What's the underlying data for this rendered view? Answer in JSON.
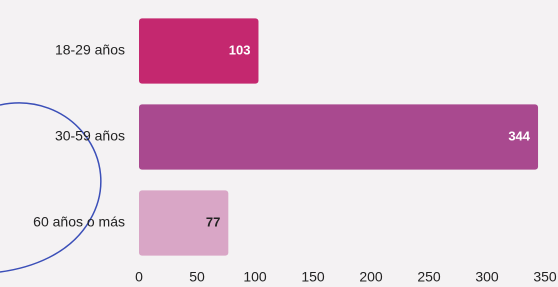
{
  "chart_data": {
    "type": "hbar",
    "categories": [
      "18-29 años",
      "30-59 años",
      "60 años o más"
    ],
    "values": [
      103,
      344,
      77
    ],
    "colors": [
      "#c4286f",
      "#a9498f",
      "#d9a6c6"
    ],
    "xlim": [
      0,
      350
    ],
    "xticks": [
      0,
      50,
      100,
      150,
      200,
      250,
      300,
      350
    ]
  }
}
